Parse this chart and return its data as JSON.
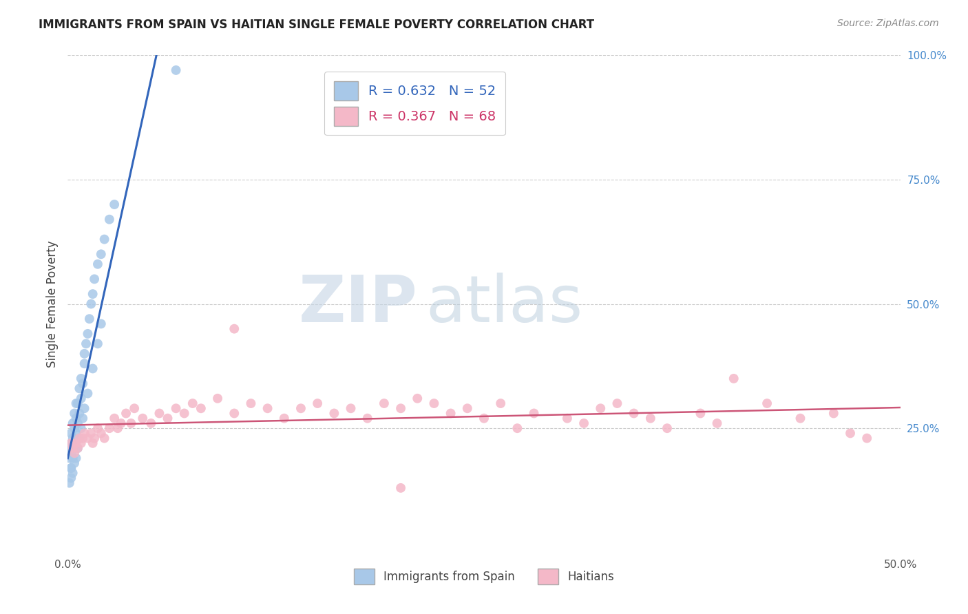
{
  "title": "IMMIGRANTS FROM SPAIN VS HAITIAN SINGLE FEMALE POVERTY CORRELATION CHART",
  "source": "Source: ZipAtlas.com",
  "ylabel": "Single Female Poverty",
  "legend_blue_text": "R = 0.632   N = 52",
  "legend_pink_text": "R = 0.367   N = 68",
  "legend_label_blue": "Immigrants from Spain",
  "legend_label_pink": "Haitians",
  "xlim": [
    0.0,
    0.5
  ],
  "ylim": [
    0.0,
    1.0
  ],
  "blue_color": "#a8c8e8",
  "blue_edge_color": "#5599cc",
  "blue_line_color": "#3366bb",
  "pink_color": "#f4b8c8",
  "pink_edge_color": "#dd8899",
  "pink_line_color": "#cc5577",
  "watermark_zip_color": "#c8d8e8",
  "watermark_atlas_color": "#b0c4d8",
  "background_color": "#ffffff",
  "grid_color": "#cccccc",
  "blue_scatter_x": [
    0.001,
    0.001,
    0.002,
    0.002,
    0.002,
    0.002,
    0.003,
    0.003,
    0.003,
    0.003,
    0.004,
    0.004,
    0.004,
    0.005,
    0.005,
    0.005,
    0.006,
    0.006,
    0.007,
    0.007,
    0.008,
    0.008,
    0.009,
    0.01,
    0.01,
    0.011,
    0.012,
    0.013,
    0.014,
    0.015,
    0.016,
    0.018,
    0.02,
    0.022,
    0.025,
    0.028,
    0.001,
    0.002,
    0.002,
    0.003,
    0.004,
    0.005,
    0.006,
    0.007,
    0.008,
    0.009,
    0.01,
    0.012,
    0.015,
    0.018,
    0.02,
    0.065
  ],
  "blue_scatter_y": [
    0.19,
    0.21,
    0.17,
    0.2,
    0.22,
    0.24,
    0.19,
    0.21,
    0.23,
    0.26,
    0.22,
    0.25,
    0.28,
    0.24,
    0.27,
    0.3,
    0.26,
    0.3,
    0.28,
    0.33,
    0.31,
    0.35,
    0.34,
    0.38,
    0.4,
    0.42,
    0.44,
    0.47,
    0.5,
    0.52,
    0.55,
    0.58,
    0.6,
    0.63,
    0.67,
    0.7,
    0.14,
    0.15,
    0.17,
    0.16,
    0.18,
    0.19,
    0.21,
    0.23,
    0.25,
    0.27,
    0.29,
    0.32,
    0.37,
    0.42,
    0.46,
    0.97
  ],
  "pink_scatter_x": [
    0.002,
    0.003,
    0.004,
    0.005,
    0.006,
    0.007,
    0.008,
    0.009,
    0.01,
    0.012,
    0.014,
    0.015,
    0.016,
    0.018,
    0.02,
    0.022,
    0.025,
    0.028,
    0.03,
    0.032,
    0.035,
    0.038,
    0.04,
    0.045,
    0.05,
    0.055,
    0.06,
    0.065,
    0.07,
    0.075,
    0.08,
    0.09,
    0.1,
    0.11,
    0.12,
    0.13,
    0.14,
    0.15,
    0.16,
    0.17,
    0.18,
    0.19,
    0.2,
    0.21,
    0.22,
    0.23,
    0.24,
    0.25,
    0.26,
    0.27,
    0.28,
    0.3,
    0.31,
    0.32,
    0.33,
    0.34,
    0.35,
    0.36,
    0.38,
    0.39,
    0.4,
    0.42,
    0.44,
    0.46,
    0.47,
    0.48,
    0.1,
    0.2
  ],
  "pink_scatter_y": [
    0.22,
    0.21,
    0.2,
    0.22,
    0.21,
    0.23,
    0.22,
    0.23,
    0.24,
    0.23,
    0.24,
    0.22,
    0.23,
    0.25,
    0.24,
    0.23,
    0.25,
    0.27,
    0.25,
    0.26,
    0.28,
    0.26,
    0.29,
    0.27,
    0.26,
    0.28,
    0.27,
    0.29,
    0.28,
    0.3,
    0.29,
    0.31,
    0.28,
    0.3,
    0.29,
    0.27,
    0.29,
    0.3,
    0.28,
    0.29,
    0.27,
    0.3,
    0.29,
    0.31,
    0.3,
    0.28,
    0.29,
    0.27,
    0.3,
    0.25,
    0.28,
    0.27,
    0.26,
    0.29,
    0.3,
    0.28,
    0.27,
    0.25,
    0.28,
    0.26,
    0.35,
    0.3,
    0.27,
    0.28,
    0.24,
    0.23,
    0.45,
    0.13
  ]
}
